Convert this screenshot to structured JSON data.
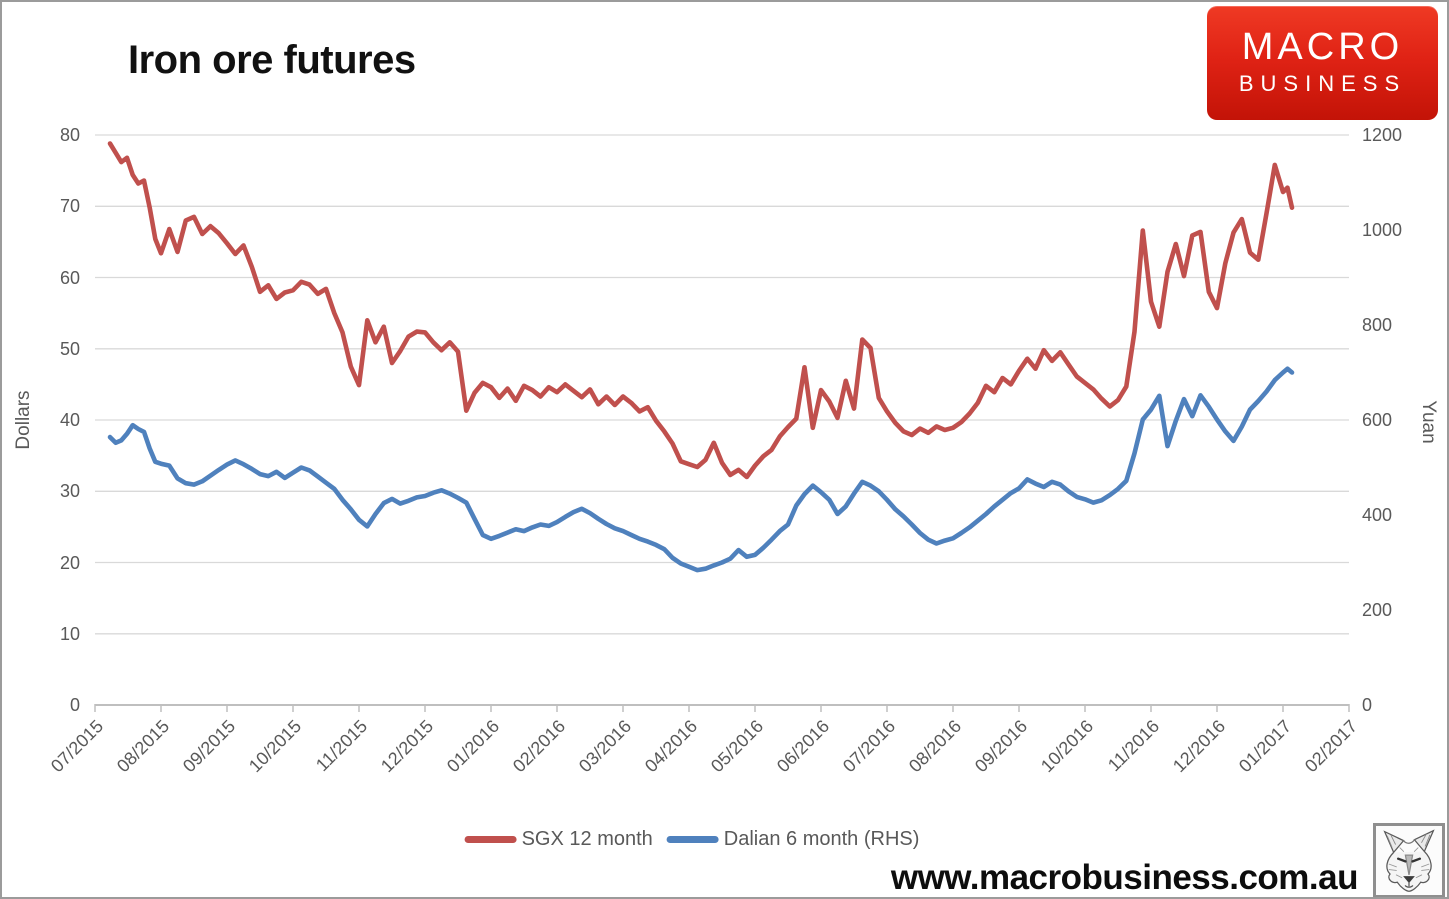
{
  "header": {
    "title": "Iron ore futures",
    "logo": {
      "line1": "MACRO",
      "line2": "BUSINESS"
    }
  },
  "footer": {
    "website": "www.macrobusiness.com.au"
  },
  "legend": {
    "items": [
      {
        "label": "SGX 12 month",
        "color": "#c0504d"
      },
      {
        "label": "Dalian 6 month (RHS)",
        "color": "#4f81bd"
      }
    ]
  },
  "chart_data": {
    "type": "line",
    "title": "Iron ore futures",
    "grid": true,
    "legend_position": "bottom",
    "left_axis": {
      "label": "Dollars",
      "range": [
        0,
        80
      ],
      "ticks": [
        0,
        10,
        20,
        30,
        40,
        50,
        60,
        70,
        80
      ]
    },
    "right_axis": {
      "label": "Yuan",
      "range": [
        0,
        1200
      ],
      "ticks": [
        0,
        200,
        400,
        600,
        800,
        1000,
        1200
      ]
    },
    "x_axis": {
      "labels": [
        "07/2015",
        "08/2015",
        "09/2015",
        "10/2015",
        "11/2015",
        "12/2015",
        "01/2016",
        "02/2016",
        "03/2016",
        "04/2016",
        "05/2016",
        "06/2016",
        "07/2016",
        "08/2016",
        "09/2016",
        "10/2016",
        "11/2016",
        "12/2016",
        "01/2017",
        "02/2017"
      ]
    },
    "series": [
      {
        "name": "SGX 12 month",
        "axis": "left",
        "color": "#c0504d",
        "values_by_month": [
          [
            78.8,
            77.5,
            76.2,
            76.8,
            74.4,
            73.2,
            73.6,
            69.8,
            65.4
          ],
          [
            63.4,
            66.8,
            63.6,
            68.0,
            68.5,
            66.1,
            67.2,
            66.2
          ],
          [
            64.8,
            63.3,
            64.5,
            61.5,
            58.0,
            58.9,
            57.0,
            57.9
          ],
          [
            58.2,
            59.4,
            59.0,
            57.7,
            58.4,
            55.0,
            52.3,
            47.5
          ],
          [
            44.9,
            54.0,
            50.9,
            53.1,
            48.0,
            49.7,
            51.7,
            52.4
          ],
          [
            52.3,
            50.9,
            49.8,
            50.9,
            49.6,
            41.3,
            43.8,
            45.2
          ],
          [
            44.6,
            43.1,
            44.4,
            42.7,
            44.8,
            44.2,
            43.3,
            44.6
          ],
          [
            43.9,
            45.0,
            44.1,
            43.2,
            44.3,
            42.2,
            43.3,
            42.1
          ],
          [
            43.3,
            42.4,
            41.2,
            41.8,
            39.9,
            38.4,
            36.7,
            34.2
          ],
          [
            33.8,
            33.4,
            34.4,
            36.8,
            34.0,
            32.3,
            33.0,
            32.0
          ],
          [
            33.6,
            34.9,
            35.8,
            37.7,
            39.0,
            40.2,
            47.4,
            38.9
          ],
          [
            44.2,
            42.6,
            40.3,
            45.5,
            41.6,
            51.3,
            50.1,
            43.1
          ],
          [
            41.2,
            39.6,
            38.4,
            37.9,
            38.8,
            38.2,
            39.1,
            38.6
          ],
          [
            38.9,
            39.7,
            40.9,
            42.4,
            44.8,
            43.9,
            45.9,
            45.0
          ],
          [
            46.9,
            48.6,
            47.2,
            49.8,
            48.3,
            49.5,
            47.8,
            46.1
          ],
          [
            45.2,
            44.3,
            43.0,
            41.9,
            42.8,
            44.7,
            52.4,
            66.6
          ],
          [
            56.6,
            53.1,
            60.8,
            64.7,
            60.2,
            65.9,
            66.4,
            58.0
          ],
          [
            55.7,
            62.0,
            66.3,
            68.2,
            63.5,
            62.5,
            69.0,
            75.8
          ],
          [
            72.0,
            72.6,
            69.8
          ]
        ]
      },
      {
        "name": "Dalian 6 month (RHS)",
        "axis": "right",
        "color": "#4f81bd",
        "values_by_month": [
          [
            564,
            552,
            557,
            571,
            589,
            581,
            575,
            540,
            512
          ],
          [
            508,
            504,
            477,
            467,
            464,
            471,
            483,
            495
          ],
          [
            506,
            515,
            507,
            497,
            486,
            482,
            491,
            478
          ],
          [
            489,
            500,
            494,
            481,
            468,
            455,
            432,
            412
          ],
          [
            390,
            376,
            402,
            425,
            434,
            424,
            430,
            437
          ],
          [
            440,
            447,
            452,
            445,
            436,
            426,
            392,
            358
          ],
          [
            350,
            356,
            363,
            370,
            366,
            374,
            380,
            377
          ],
          [
            385,
            396,
            406,
            413,
            404,
            392,
            381,
            372
          ],
          [
            366,
            358,
            350,
            344,
            337,
            328,
            310,
            298
          ],
          [
            291,
            284,
            287,
            294,
            300,
            308,
            326,
            312
          ],
          [
            316,
            331,
            348,
            366,
            380,
            420,
            444,
            462
          ],
          [
            448,
            432,
            402,
            418,
            445,
            470,
            462,
            450
          ],
          [
            432,
            412,
            397,
            380,
            362,
            348,
            340,
            346
          ],
          [
            351,
            362,
            374,
            388,
            402,
            418,
            432,
            446
          ],
          [
            456,
            475,
            466,
            459,
            470,
            464,
            450,
            438
          ],
          [
            433,
            426,
            431,
            442,
            455,
            472,
            530,
            601
          ],
          [
            622,
            651,
            545,
            598,
            644,
            608,
            652,
            628
          ],
          [
            601,
            576,
            556,
            586,
            622,
            640,
            660,
            684
          ],
          [
            700,
            708,
            700
          ]
        ]
      }
    ]
  }
}
